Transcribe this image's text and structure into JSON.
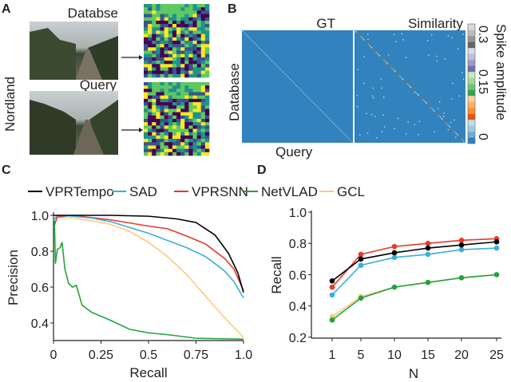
{
  "panel_labels": [
    "A",
    "B",
    "C",
    "D"
  ],
  "panel_a": {
    "database_label": "Databse",
    "query_label": "Query",
    "dataset_label": "Nordland"
  },
  "panel_b": {
    "gt_label": "GT",
    "similarity_label": "Similarity",
    "ylabel": "Database",
    "xlabel": "Query",
    "colorbar_label": "Spike amplitude",
    "colorbar_ticks": [
      "0.3",
      "0.15",
      "0"
    ],
    "colorbar_colors": [
      "#3182bd",
      "#6baed6",
      "#9ecae1",
      "#c6dbef",
      "#e6550d",
      "#fd8d3c",
      "#fdae6b",
      "#fdd0a2",
      "#31a354",
      "#74c476",
      "#a1d99b",
      "#c7e9c0",
      "#756bb1",
      "#9e9ac8",
      "#bcbddc",
      "#dadaeb",
      "#636363",
      "#969696",
      "#bdbdbd",
      "#d9d9d9"
    ]
  },
  "chart_data": [
    {
      "type": "line",
      "title": "",
      "xlabel": "Recall",
      "ylabel": "Precision",
      "xlim": [
        0,
        1
      ],
      "ylim": [
        0.3,
        1.0
      ],
      "xticks": [
        "0",
        "0.25",
        "0.5",
        "0.75",
        "1.0"
      ],
      "xtick_values": [
        0,
        0.25,
        0.5,
        0.75,
        1.0
      ],
      "yticks": [
        "0.4",
        "0.6",
        "0.8",
        "1.0"
      ],
      "ytick_values": [
        0.4,
        0.6,
        0.8,
        1.0
      ],
      "legend_position": "top",
      "series": [
        {
          "name": "VPRTempo",
          "color": "#000000",
          "points": [
            [
              0,
              1.0
            ],
            [
              0.3,
              1.0
            ],
            [
              0.5,
              0.995
            ],
            [
              0.65,
              0.98
            ],
            [
              0.75,
              0.96
            ],
            [
              0.85,
              0.89
            ],
            [
              0.92,
              0.79
            ],
            [
              0.97,
              0.68
            ],
            [
              1.0,
              0.57
            ]
          ]
        },
        {
          "name": "SAD",
          "color": "#3aafd9",
          "points": [
            [
              0,
              0.97
            ],
            [
              0.02,
              1.0
            ],
            [
              0.1,
              0.995
            ],
            [
              0.2,
              0.985
            ],
            [
              0.3,
              0.965
            ],
            [
              0.5,
              0.9
            ],
            [
              0.6,
              0.86
            ],
            [
              0.7,
              0.82
            ],
            [
              0.8,
              0.77
            ],
            [
              0.9,
              0.69
            ],
            [
              0.95,
              0.63
            ],
            [
              1.0,
              0.54
            ]
          ]
        },
        {
          "name": "VPRSNN",
          "color": "#e8392a",
          "points": [
            [
              0,
              0.93
            ],
            [
              0.02,
              0.99
            ],
            [
              0.1,
              1.0
            ],
            [
              0.3,
              0.975
            ],
            [
              0.5,
              0.94
            ],
            [
              0.6,
              0.925
            ],
            [
              0.7,
              0.885
            ],
            [
              0.8,
              0.84
            ],
            [
              0.9,
              0.76
            ],
            [
              0.95,
              0.7
            ],
            [
              1.0,
              0.58
            ]
          ]
        },
        {
          "name": "NetVLAD",
          "color": "#23a33f",
          "points": [
            [
              0.005,
              0.97
            ],
            [
              0.01,
              0.73
            ],
            [
              0.02,
              0.81
            ],
            [
              0.035,
              0.82
            ],
            [
              0.045,
              0.85
            ],
            [
              0.06,
              0.7
            ],
            [
              0.08,
              0.62
            ],
            [
              0.1,
              0.6
            ],
            [
              0.12,
              0.61
            ],
            [
              0.15,
              0.5
            ],
            [
              0.2,
              0.46
            ],
            [
              0.3,
              0.415
            ],
            [
              0.4,
              0.365
            ],
            [
              0.5,
              0.345
            ],
            [
              0.6,
              0.335
            ],
            [
              0.75,
              0.315
            ],
            [
              1.0,
              0.31
            ]
          ]
        },
        {
          "name": "GCL",
          "color": "#fdc97a",
          "points": [
            [
              0,
              0.99
            ],
            [
              0.1,
              0.985
            ],
            [
              0.2,
              0.97
            ],
            [
              0.3,
              0.95
            ],
            [
              0.4,
              0.91
            ],
            [
              0.5,
              0.85
            ],
            [
              0.6,
              0.77
            ],
            [
              0.7,
              0.67
            ],
            [
              0.8,
              0.55
            ],
            [
              0.9,
              0.43
            ],
            [
              1.0,
              0.32
            ]
          ]
        }
      ]
    },
    {
      "type": "line",
      "title": "",
      "xlabel": "N",
      "ylabel": "Recall",
      "categories": [
        "1",
        "5",
        "10",
        "15",
        "20",
        "25"
      ],
      "ylim": [
        0.2,
        1.0
      ],
      "yticks": [
        "0.2",
        "0.4",
        "0.6",
        "0.8",
        "1.0"
      ],
      "ytick_values": [
        0.2,
        0.4,
        0.6,
        0.8,
        1.0
      ],
      "series": [
        {
          "name": "GCL",
          "color": "#fdc97a",
          "values": [
            0.33,
            0.46,
            0.52,
            0.55,
            0.58,
            0.6
          ]
        },
        {
          "name": "NetVLAD",
          "color": "#23a33f",
          "values": [
            0.31,
            0.45,
            0.52,
            0.55,
            0.58,
            0.6
          ]
        },
        {
          "name": "SAD",
          "color": "#3aafd9",
          "values": [
            0.47,
            0.66,
            0.71,
            0.73,
            0.76,
            0.77
          ]
        },
        {
          "name": "VPRSNN",
          "color": "#e8392a",
          "values": [
            0.52,
            0.73,
            0.78,
            0.8,
            0.82,
            0.83
          ]
        },
        {
          "name": "VPRTempo",
          "color": "#000000",
          "values": [
            0.56,
            0.7,
            0.74,
            0.77,
            0.79,
            0.81
          ]
        }
      ]
    }
  ]
}
